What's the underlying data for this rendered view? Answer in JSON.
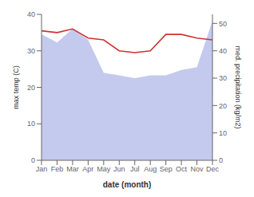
{
  "chart_data": {
    "type": "line",
    "xlabel": "date (month)",
    "ylabel": "max temp (C)",
    "y2label": "med. precipitation (kg/m2)",
    "categories": [
      "Jan",
      "Feb",
      "Mar",
      "Apr",
      "May",
      "Jun",
      "Jul",
      "Aug",
      "Sep",
      "Oct",
      "Nov",
      "Dec"
    ],
    "series": [
      {
        "name": "precip",
        "type": "area",
        "axis": "y2",
        "color": "#b0b8e8",
        "values": [
          46,
          43,
          48,
          44,
          32,
          31,
          30,
          31,
          31,
          33,
          34,
          51
        ]
      },
      {
        "name": "temp",
        "type": "line",
        "color": "#cd3333",
        "values": [
          35.5,
          35.0,
          36.0,
          33.5,
          33.0,
          30.0,
          29.5,
          30.0,
          34.5,
          34.5,
          33.5,
          33.0
        ]
      }
    ],
    "ylim": [
      0,
      40
    ],
    "yticks": [
      0,
      10,
      20,
      30,
      40
    ],
    "y2lim": [
      0,
      53.3
    ],
    "y2ticks": [
      0,
      10,
      20,
      30,
      40,
      50
    ],
    "grid": false
  }
}
